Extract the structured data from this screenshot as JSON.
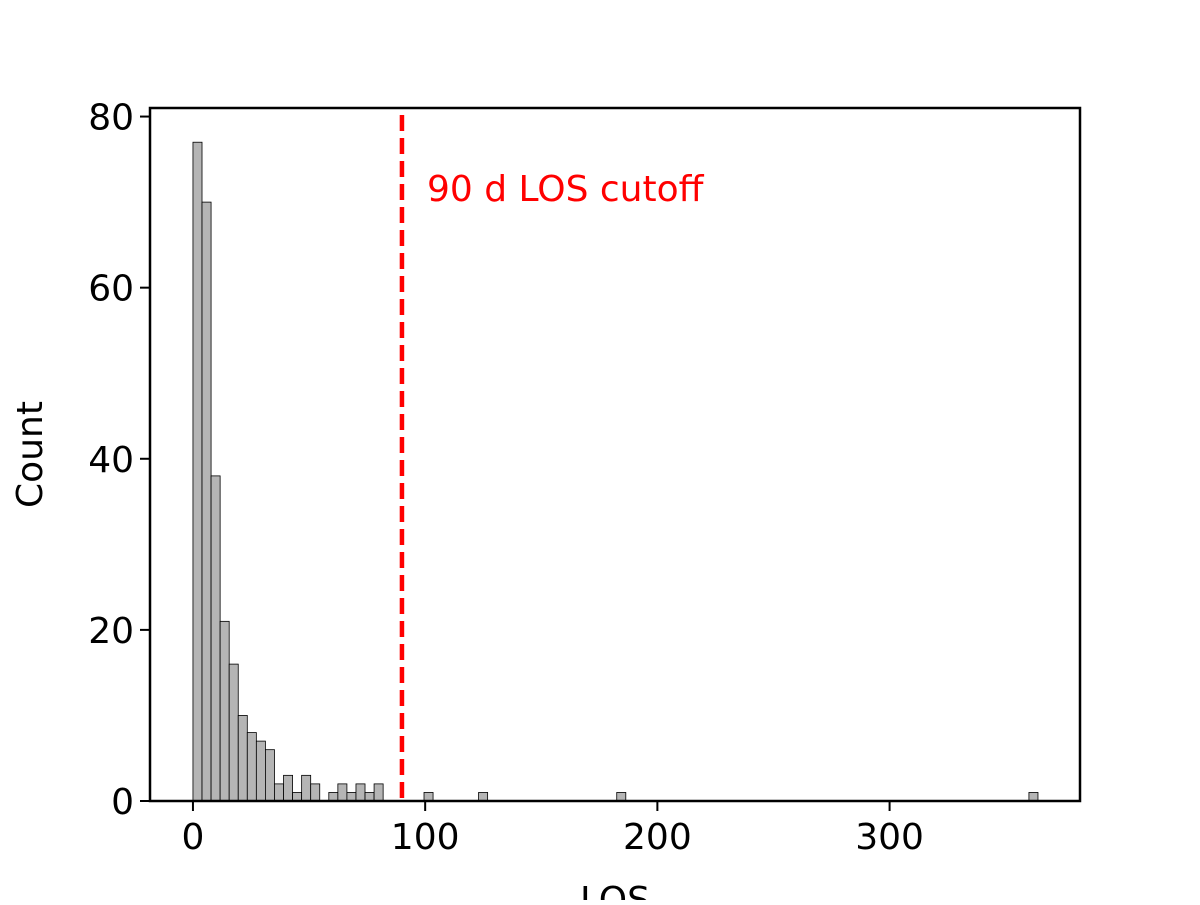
{
  "chart_data": {
    "type": "bar",
    "title": "",
    "xlabel": "LOS",
    "ylabel": "Count",
    "xlim": [
      -18.5,
      382
    ],
    "ylim": [
      0,
      81
    ],
    "xticks": [
      0,
      100,
      200,
      300
    ],
    "yticks": [
      0,
      20,
      40,
      60,
      80
    ],
    "bin_width": 3.9,
    "bins": [
      {
        "x": 0.0,
        "count": 77
      },
      {
        "x": 3.9,
        "count": 70
      },
      {
        "x": 7.8,
        "count": 38
      },
      {
        "x": 11.7,
        "count": 21
      },
      {
        "x": 15.6,
        "count": 16
      },
      {
        "x": 19.5,
        "count": 10
      },
      {
        "x": 23.4,
        "count": 8
      },
      {
        "x": 27.3,
        "count": 7
      },
      {
        "x": 31.2,
        "count": 6
      },
      {
        "x": 35.1,
        "count": 2
      },
      {
        "x": 39.0,
        "count": 3
      },
      {
        "x": 42.9,
        "count": 1
      },
      {
        "x": 46.8,
        "count": 3
      },
      {
        "x": 50.7,
        "count": 2
      },
      {
        "x": 58.5,
        "count": 1
      },
      {
        "x": 62.4,
        "count": 2
      },
      {
        "x": 66.3,
        "count": 1
      },
      {
        "x": 70.2,
        "count": 2
      },
      {
        "x": 74.1,
        "count": 1
      },
      {
        "x": 78.0,
        "count": 2
      },
      {
        "x": 99.5,
        "count": 1
      },
      {
        "x": 123.0,
        "count": 1
      },
      {
        "x": 182.5,
        "count": 1
      },
      {
        "x": 360.0,
        "count": 1
      }
    ],
    "bar_color": "#b5b5b5",
    "bar_edge_color": "#000000",
    "reference_line": {
      "x": 90,
      "color": "#ff0000",
      "style": "dashed",
      "label": "90 d LOS cutoff"
    },
    "grid": false,
    "legend": "none"
  }
}
